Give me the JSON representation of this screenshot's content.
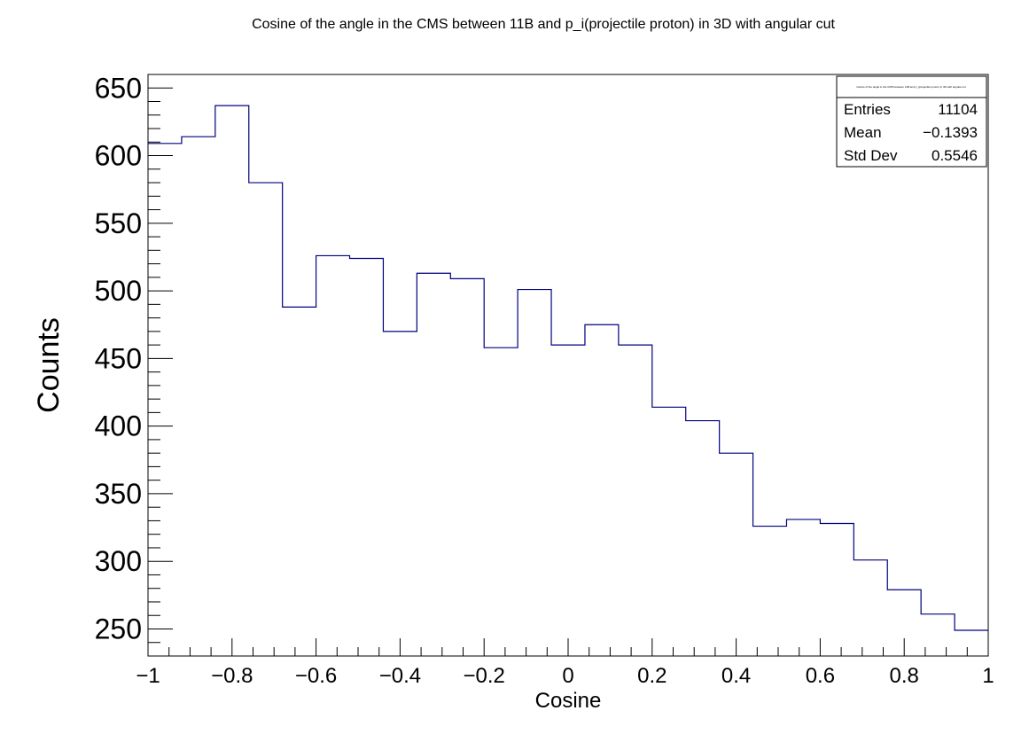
{
  "chart_data": {
    "type": "histogram",
    "title": "Cosine of the angle in the CMS between 11B and p_i(projectile proton) in 3D with angular cut",
    "xlabel": "Cosine",
    "ylabel": "Counts",
    "xlim": [
      -1,
      1
    ],
    "ylim": [
      230,
      660
    ],
    "bin_edges": [
      -1.0,
      -0.92,
      -0.84,
      -0.76,
      -0.68,
      -0.6,
      -0.52,
      -0.44,
      -0.36,
      -0.28,
      -0.2,
      -0.12,
      -0.04,
      0.04,
      0.12,
      0.2,
      0.28,
      0.36,
      0.44,
      0.52,
      0.6,
      0.68,
      0.76,
      0.84,
      0.92,
      1.0
    ],
    "values": [
      609,
      614,
      637,
      580,
      488,
      526,
      524,
      470,
      513,
      509,
      458,
      501,
      460,
      475,
      460,
      414,
      404,
      380,
      326,
      331,
      328,
      301,
      279,
      261,
      249
    ],
    "x_ticks": [
      {
        "value": -1,
        "label": "−1"
      },
      {
        "value": -0.8,
        "label": "−0.8"
      },
      {
        "value": -0.6,
        "label": "−0.6"
      },
      {
        "value": -0.4,
        "label": "−0.4"
      },
      {
        "value": -0.2,
        "label": "−0.2"
      },
      {
        "value": 0,
        "label": "0"
      },
      {
        "value": 0.2,
        "label": "0.2"
      },
      {
        "value": 0.4,
        "label": "0.4"
      },
      {
        "value": 0.6,
        "label": "0.6"
      },
      {
        "value": 0.8,
        "label": "0.8"
      },
      {
        "value": 1,
        "label": "1"
      }
    ],
    "y_ticks": [
      {
        "value": 250,
        "label": "250"
      },
      {
        "value": 300,
        "label": "300"
      },
      {
        "value": 350,
        "label": "350"
      },
      {
        "value": 400,
        "label": "400"
      },
      {
        "value": 450,
        "label": "450"
      },
      {
        "value": 500,
        "label": "500"
      },
      {
        "value": 550,
        "label": "550"
      },
      {
        "value": 600,
        "label": "600"
      },
      {
        "value": 650,
        "label": "650"
      }
    ],
    "line_color": "#00007f",
    "grid": false,
    "legend_position": "top-right",
    "stats_box": {
      "title": "Cosine of the angle in the CMS between 11B and p_i(projectile proton) in 3D with angular cut",
      "rows": [
        {
          "label": "Entries",
          "value": "11104"
        },
        {
          "label": "Mean",
          "value": "−0.1393"
        },
        {
          "label": "Std Dev",
          "value": "0.5546"
        }
      ]
    }
  }
}
